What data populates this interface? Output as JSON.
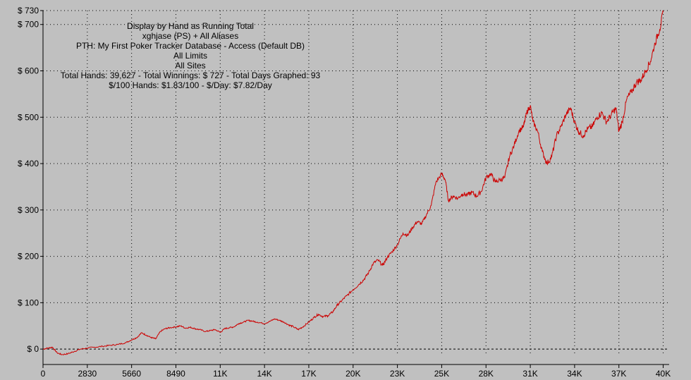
{
  "info": {
    "line1": "Display by Hand as Running Total",
    "line2": "xghjase (PS) + All Aliases",
    "line3": "PTH: My First Poker Tracker Database - Access (Default DB)",
    "line4": "All Limits",
    "line5": "All Sites",
    "line6": "Total Hands: 39,627 - Total Winnings: $ 727 - Total Days Graphed: 93",
    "line7": "$/100 Hands: $1.83/100 - $/Day: $7.82/Day"
  },
  "colors": {
    "background": "#c0c0c0",
    "line": "#cc0000",
    "grid": "#000000"
  },
  "chart_data": {
    "type": "line",
    "title": "",
    "xlabel": "",
    "ylabel": "",
    "xlim": [
      0,
      40000
    ],
    "ylim": [
      -15,
      730
    ],
    "grid": true,
    "xticks": [
      0,
      2830,
      5660,
      8490,
      11320,
      14150,
      16980,
      19810,
      22640,
      25470,
      28300,
      31130,
      33960,
      36790,
      39620
    ],
    "xtick_labels": [
      "0",
      "2830",
      "5660",
      "8490",
      "11K",
      "14K",
      "17K",
      "20K",
      "23K",
      "25K",
      "28K",
      "31K",
      "34K",
      "37K",
      "40K"
    ],
    "yticks": [
      0,
      100,
      200,
      300,
      400,
      500,
      600,
      700,
      730
    ],
    "ytick_labels": [
      "$ 0",
      "$ 100",
      "$ 200",
      "$ 300",
      "$ 400",
      "$ 500",
      "$ 600",
      "$ 700",
      "$ 730"
    ],
    "series": [
      {
        "values": [
          [
            0,
            0
          ],
          [
            300,
            2
          ],
          [
            600,
            4
          ],
          [
            900,
            -8
          ],
          [
            1200,
            -12
          ],
          [
            1600,
            -10
          ],
          [
            2000,
            -5
          ],
          [
            2400,
            0
          ],
          [
            2830,
            2
          ],
          [
            3300,
            4
          ],
          [
            3800,
            6
          ],
          [
            4300,
            8
          ],
          [
            4800,
            10
          ],
          [
            5300,
            14
          ],
          [
            5660,
            20
          ],
          [
            6000,
            25
          ],
          [
            6300,
            35
          ],
          [
            6600,
            30
          ],
          [
            6900,
            25
          ],
          [
            7200,
            22
          ],
          [
            7500,
            38
          ],
          [
            7800,
            44
          ],
          [
            8100,
            46
          ],
          [
            8490,
            48
          ],
          [
            8800,
            50
          ],
          [
            9100,
            45
          ],
          [
            9400,
            47
          ],
          [
            9700,
            44
          ],
          [
            10000,
            42
          ],
          [
            10400,
            38
          ],
          [
            10700,
            40
          ],
          [
            11000,
            42
          ],
          [
            11320,
            36
          ],
          [
            11600,
            44
          ],
          [
            11900,
            46
          ],
          [
            12200,
            48
          ],
          [
            12500,
            55
          ],
          [
            12800,
            58
          ],
          [
            13100,
            62
          ],
          [
            13400,
            60
          ],
          [
            13700,
            58
          ],
          [
            14150,
            55
          ],
          [
            14500,
            60
          ],
          [
            14800,
            65
          ],
          [
            15100,
            62
          ],
          [
            15400,
            58
          ],
          [
            15700,
            52
          ],
          [
            16000,
            48
          ],
          [
            16300,
            42
          ],
          [
            16600,
            48
          ],
          [
            16980,
            58
          ],
          [
            17300,
            68
          ],
          [
            17600,
            75
          ],
          [
            17900,
            70
          ],
          [
            18200,
            72
          ],
          [
            18500,
            80
          ],
          [
            18800,
            95
          ],
          [
            19100,
            105
          ],
          [
            19400,
            115
          ],
          [
            19810,
            128
          ],
          [
            20200,
            140
          ],
          [
            20500,
            150
          ],
          [
            20800,
            165
          ],
          [
            21100,
            185
          ],
          [
            21400,
            192
          ],
          [
            21700,
            180
          ],
          [
            22000,
            198
          ],
          [
            22300,
            210
          ],
          [
            22640,
            225
          ],
          [
            23000,
            250
          ],
          [
            23300,
            245
          ],
          [
            23600,
            262
          ],
          [
            23900,
            275
          ],
          [
            24200,
            270
          ],
          [
            24500,
            290
          ],
          [
            24800,
            310
          ],
          [
            25100,
            360
          ],
          [
            25470,
            378
          ],
          [
            25700,
            365
          ],
          [
            25900,
            320
          ],
          [
            26200,
            330
          ],
          [
            26500,
            325
          ],
          [
            26800,
            335
          ],
          [
            27100,
            332
          ],
          [
            27400,
            338
          ],
          [
            27700,
            330
          ],
          [
            28000,
            340
          ],
          [
            28300,
            370
          ],
          [
            28600,
            378
          ],
          [
            28900,
            360
          ],
          [
            29200,
            365
          ],
          [
            29500,
            370
          ],
          [
            29800,
            415
          ],
          [
            30100,
            440
          ],
          [
            30400,
            470
          ],
          [
            30700,
            480
          ],
          [
            30900,
            510
          ],
          [
            31130,
            525
          ],
          [
            31300,
            490
          ],
          [
            31600,
            470
          ],
          [
            31900,
            425
          ],
          [
            32200,
            400
          ],
          [
            32500,
            415
          ],
          [
            32800,
            460
          ],
          [
            33100,
            480
          ],
          [
            33400,
            505
          ],
          [
            33700,
            520
          ],
          [
            33960,
            490
          ],
          [
            34200,
            470
          ],
          [
            34500,
            460
          ],
          [
            34800,
            475
          ],
          [
            35100,
            480
          ],
          [
            35400,
            500
          ],
          [
            35700,
            510
          ],
          [
            36000,
            490
          ],
          [
            36300,
            505
          ],
          [
            36600,
            520
          ],
          [
            36790,
            470
          ],
          [
            37000,
            490
          ],
          [
            37300,
            540
          ],
          [
            37600,
            555
          ],
          [
            37900,
            575
          ],
          [
            38200,
            580
          ],
          [
            38500,
            600
          ],
          [
            38800,
            620
          ],
          [
            39100,
            660
          ],
          [
            39400,
            690
          ],
          [
            39620,
            727
          ]
        ]
      }
    ]
  }
}
